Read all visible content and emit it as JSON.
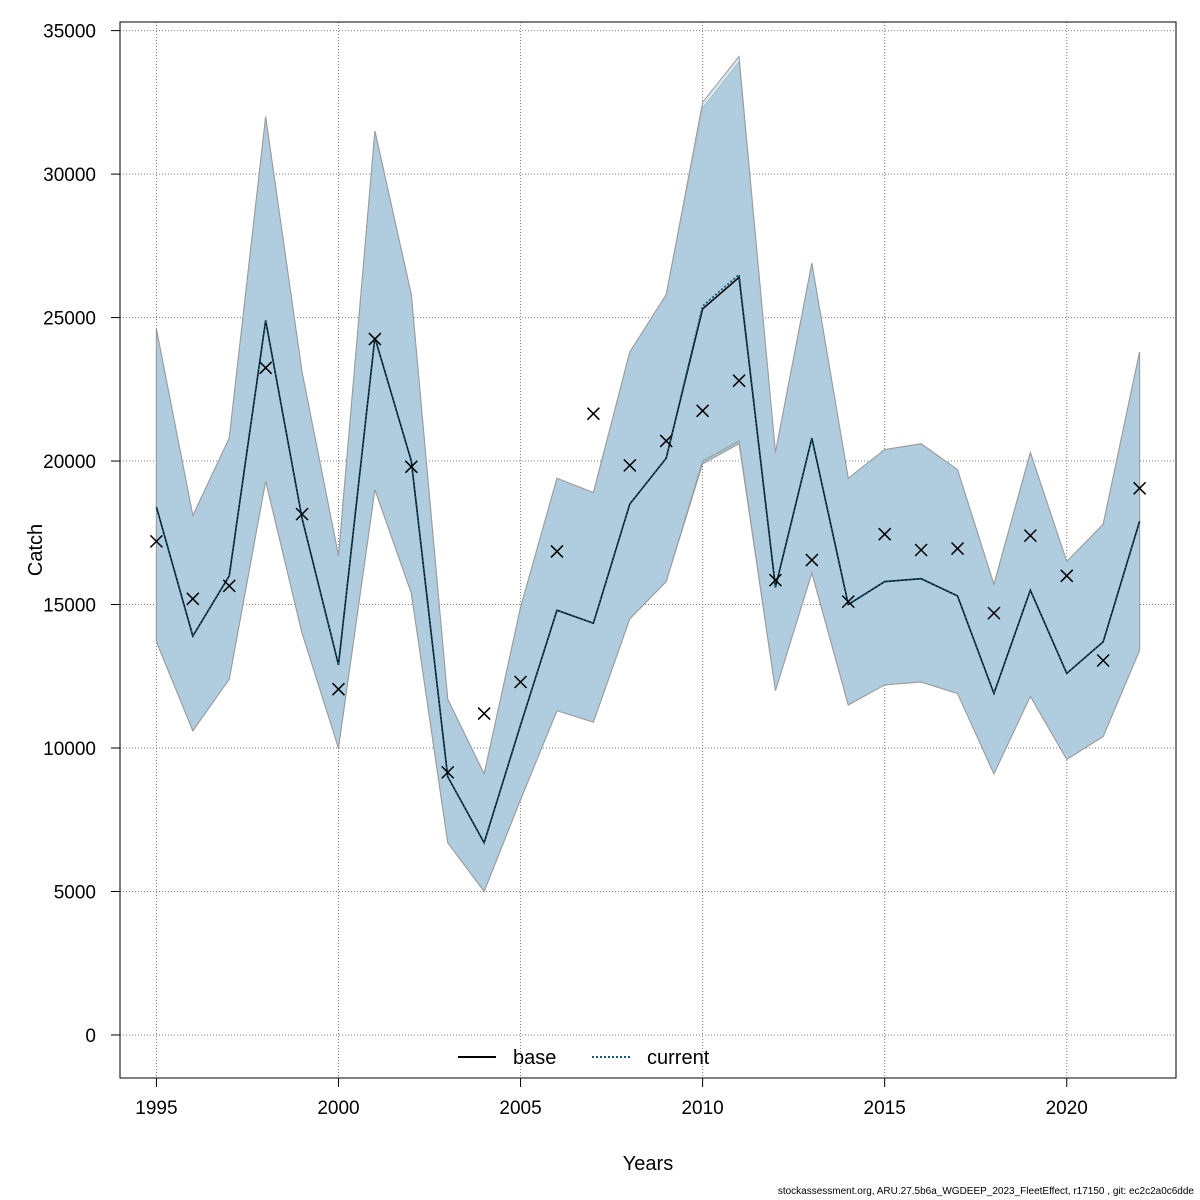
{
  "chart_data": {
    "type": "line",
    "xlabel": "Years",
    "ylabel": "Catch",
    "xlim": [
      1994,
      2023
    ],
    "ylim": [
      -1500,
      35300
    ],
    "x_ticks": [
      1995,
      2000,
      2005,
      2010,
      2015,
      2020
    ],
    "y_ticks": [
      0,
      5000,
      10000,
      15000,
      20000,
      25000,
      30000,
      35000
    ],
    "grid": true,
    "legend_position": "bottom-center",
    "colors": {
      "band_fill": "#a6c4d6",
      "band_edge": "#9a9a9a",
      "base": "#000000",
      "current": "#0d5b7a",
      "observed": "#000000"
    },
    "legend": [
      {
        "label": "base",
        "style": "solid"
      },
      {
        "label": "current",
        "style": "dotted"
      }
    ],
    "x": [
      1995,
      1996,
      1997,
      1998,
      1999,
      2000,
      2001,
      2002,
      2003,
      2004,
      2005,
      2006,
      2007,
      2008,
      2009,
      2010,
      2011,
      2012,
      2013,
      2014,
      2015,
      2016,
      2017,
      2018,
      2019,
      2020,
      2021,
      2022
    ],
    "series": [
      {
        "name": "base",
        "kind": "estimate",
        "values": [
          18400,
          13900,
          16000,
          24900,
          18000,
          12900,
          24300,
          20000,
          9000,
          6700,
          10800,
          14800,
          14350,
          18500,
          20100,
          25300,
          26400,
          15600,
          20800,
          15000,
          15800,
          15900,
          15300,
          11900,
          15500,
          12600,
          13700,
          17900
        ],
        "lower": [
          13700,
          10600,
          12400,
          19300,
          14000,
          10000,
          19000,
          15400,
          6700,
          5000,
          8200,
          11300,
          10900,
          14500,
          15800,
          19900,
          20600,
          12000,
          16100,
          11500,
          12200,
          12300,
          11900,
          9100,
          11800,
          9600,
          10400,
          13400
        ],
        "upper": [
          24600,
          18100,
          20800,
          32000,
          23100,
          16700,
          31500,
          25800,
          11700,
          9100,
          14900,
          19400,
          18900,
          23800,
          25800,
          32300,
          33900,
          20300,
          26900,
          19400,
          20400,
          20600,
          19700,
          15700,
          20300,
          16500,
          17800,
          23800
        ]
      },
      {
        "name": "current",
        "kind": "estimate",
        "values": [
          18400,
          13900,
          16000,
          24900,
          18000,
          12900,
          24300,
          20000,
          9000,
          6700,
          10800,
          14800,
          14350,
          18500,
          20100,
          25400,
          26500,
          15600,
          20800,
          15000,
          15800,
          15900,
          15300,
          11900,
          15500,
          12600,
          13700,
          17900
        ],
        "lower": [
          13700,
          10600,
          12400,
          19300,
          14000,
          10000,
          19000,
          15400,
          6700,
          5000,
          8200,
          11300,
          10900,
          14500,
          15800,
          20000,
          20700,
          12000,
          16100,
          11500,
          12200,
          12300,
          11900,
          9100,
          11800,
          9600,
          10400,
          13400
        ],
        "upper": [
          24600,
          18100,
          20800,
          32000,
          23100,
          16700,
          31500,
          25800,
          11700,
          9100,
          14900,
          19400,
          18900,
          23800,
          25800,
          32500,
          34100,
          20300,
          26900,
          19400,
          20400,
          20600,
          19700,
          15700,
          20300,
          16500,
          17800,
          23800
        ]
      },
      {
        "kind": "observed",
        "marker": "x",
        "values": [
          17200,
          15200,
          15650,
          23250,
          18150,
          12050,
          24250,
          19800,
          9150,
          11200,
          12300,
          16850,
          21650,
          19850,
          20700,
          21750,
          22800,
          15850,
          16550,
          15100,
          17450,
          16900,
          16950,
          14700,
          17400,
          16000,
          13050,
          19050
        ]
      }
    ]
  },
  "footer_text": "stockassessment.org, ARU.27.5b6a_WGDEEP_2023_FleetEffect, r17150 , git: ec2c2a0c6dde"
}
